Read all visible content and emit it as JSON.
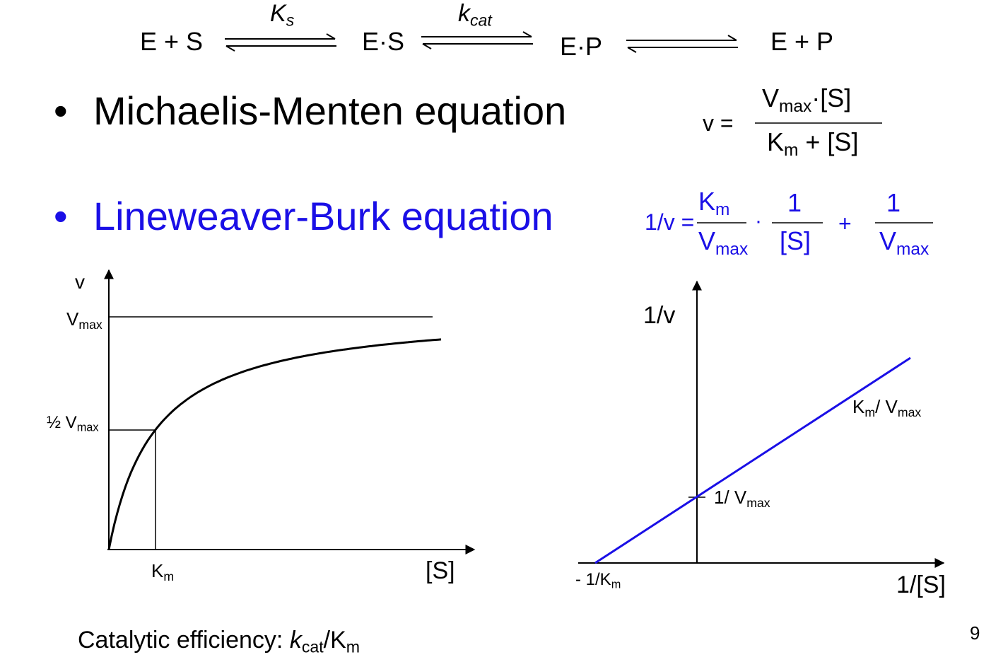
{
  "scheme": {
    "species": [
      "E + S",
      "E·S",
      "E·P",
      "E + P"
    ],
    "k1": {
      "sym": "K",
      "sub": "s"
    },
    "k2": {
      "sym": "k",
      "sub": "cat"
    }
  },
  "bullets": {
    "mm_title": "Michaelis-Menten equation",
    "lb_title": "Lineweaver-Burk equation",
    "bullet_char": "•"
  },
  "mm_eq": {
    "lhs": "v =",
    "num_v": "V",
    "num_v_sub": "max",
    "num_rest": "·[S]",
    "den_k": "K",
    "den_k_sub": "m",
    "den_rest": " + [S]"
  },
  "lb_eq": {
    "lhs": "1/v =",
    "t1_num": "K",
    "t1_num_sub": "m",
    "t1_den": "V",
    "t1_den_sub": "max",
    "dot": "·",
    "t2_num": "1",
    "t2_den": "[S]",
    "plus": "+",
    "t3_num": "1",
    "t3_den": "V",
    "t3_den_sub": "max"
  },
  "mm_plot": {
    "y_label": "v",
    "vmax_label": "V",
    "vmax_sub": "max",
    "half_label": "½ V",
    "half_sub": "max",
    "km_label": "K",
    "km_sub": "m",
    "x_label": "[S]"
  },
  "lb_plot": {
    "y_label": "1/v",
    "slope_label_a": "K",
    "slope_label_a_sub": "m",
    "slope_label_b": "/ V",
    "slope_label_b_sub": "max",
    "yint_label": "1/ V",
    "yint_sub": "max",
    "xint_label": "- 1/K",
    "xint_sub": "m",
    "x_label": "1/[S]"
  },
  "footer": {
    "prefix": "Catalytic efficiency: ",
    "k": "k",
    "k_sub": "cat",
    "slash": "/K",
    "km_sub": "m"
  },
  "page_number": "9",
  "colors": {
    "accent": "#1a0fe6",
    "ink": "#000000"
  }
}
